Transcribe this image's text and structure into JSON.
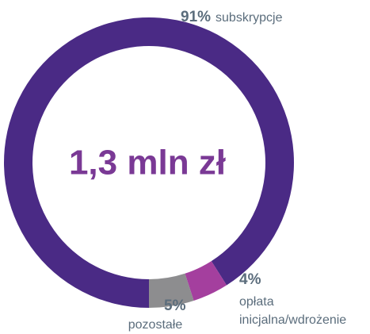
{
  "chart_data": {
    "type": "pie",
    "center_label": "1,3 mln zł",
    "categories": [
      "subskrypcje",
      "opłata",
      "pozostałe"
    ],
    "category_lines": [
      [
        "subskrypcje"
      ],
      [
        "opłata",
        "inicjalna/wdrożenie"
      ],
      [
        "pozostałe"
      ]
    ],
    "values": [
      91,
      4,
      5
    ],
    "value_labels": [
      "91%",
      "4%",
      "5%"
    ],
    "colors": [
      "#4a2a85",
      "#a43f9e",
      "#8d8d8f"
    ]
  }
}
